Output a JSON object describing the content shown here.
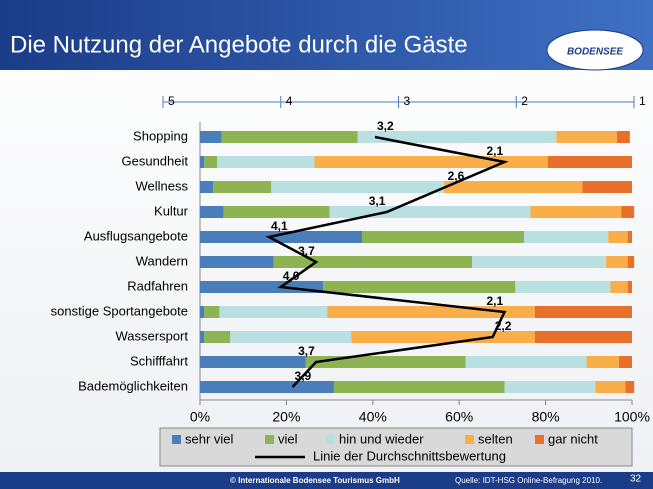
{
  "chart_data": {
    "type": "bar",
    "stacked": true,
    "orientation": "horizontal",
    "title": "Die Nutzung der Angebote durch die Gäste",
    "categories": [
      "Shopping",
      "Gesundheit",
      "Wellness",
      "Kultur",
      "Ausflugsangebote",
      "Wandern",
      "Radfahren",
      "sonstige Sportangebote",
      "Wassersport",
      "Schifffahrt",
      "Bademöglichkeiten"
    ],
    "series": [
      {
        "name": "sehr viel",
        "color": "#4a7ebb",
        "values": [
          5,
          1,
          3,
          5.5,
          37.5,
          17,
          28.5,
          1,
          1,
          24.5,
          31
        ]
      },
      {
        "name": "viel",
        "color": "#8db352",
        "values": [
          31.5,
          3,
          13.5,
          24.5,
          37.5,
          46,
          44.5,
          3.5,
          6,
          37,
          39.5
        ]
      },
      {
        "name": "hin und wieder",
        "color": "#b9dfe0",
        "values": [
          46,
          22.5,
          40,
          46.5,
          19.5,
          31,
          22,
          25,
          28,
          28,
          21
        ]
      },
      {
        "name": "selten",
        "color": "#f9ae4a",
        "values": [
          14,
          54,
          32,
          21,
          4.5,
          5,
          4,
          48,
          42.5,
          7.5,
          7
        ]
      },
      {
        "name": "gar nicht",
        "color": "#e8702a",
        "values": [
          3,
          19.5,
          11.5,
          3,
          1,
          1.5,
          1,
          22.5,
          22.5,
          3,
          2
        ]
      }
    ],
    "xlim": [
      0,
      100
    ],
    "xticks": [
      {
        "value": 0,
        "label": "0%"
      },
      {
        "value": 20,
        "label": "20%"
      },
      {
        "value": 40,
        "label": "40%"
      },
      {
        "value": 60,
        "label": "60%"
      },
      {
        "value": 80,
        "label": "80%"
      },
      {
        "value": 100,
        "label": "100%"
      }
    ],
    "line": {
      "name": "Linie der Durchschnittsbewertung",
      "color": "#000000",
      "axis": "x2",
      "values": [
        3.2,
        2.1,
        2.6,
        3.1,
        4.1,
        3.7,
        4.0,
        2.1,
        2.2,
        3.7,
        3.9
      ],
      "value_labels": [
        "3,2",
        "2,1",
        "2,6",
        "3,1",
        "4,1",
        "3,7",
        "4,0",
        "2,1",
        "2,2",
        "3,7",
        "3,9"
      ]
    },
    "x2lim": [
      5,
      1
    ],
    "x2ticks": [
      5,
      4,
      3,
      2,
      1
    ],
    "grid": false
  },
  "logo": "BODENSEE",
  "footer": {
    "copyright": "© Internationale Bodensee Tourismus GmbH",
    "source": "Quelle: IDT-HSG Online-Befragung 2010.",
    "page": "32"
  }
}
